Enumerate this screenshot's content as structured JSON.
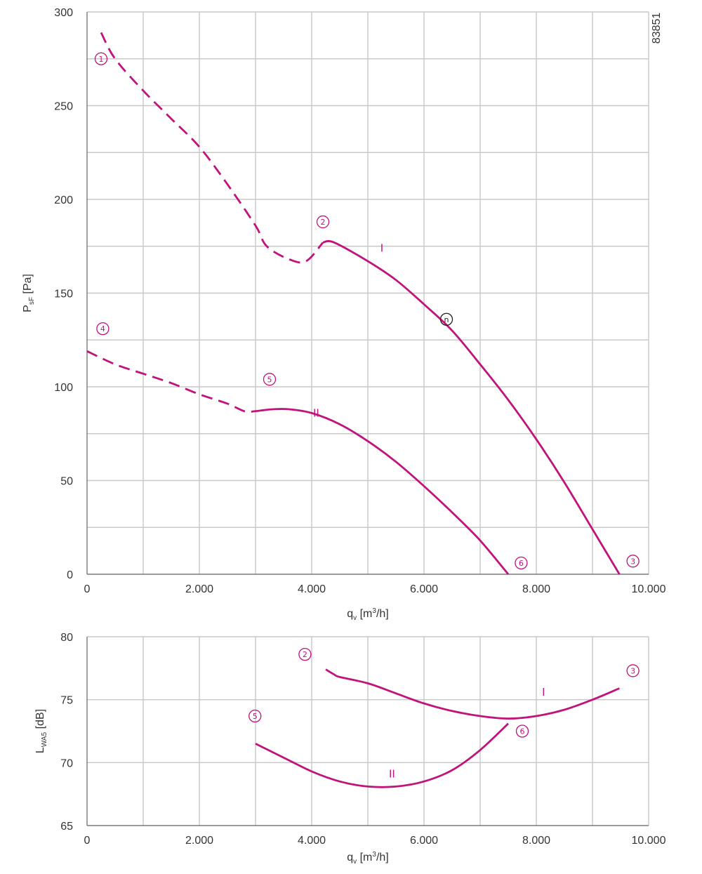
{
  "figure_id": "83851",
  "colors": {
    "curve": "#C0137B",
    "marker_n": "#222222",
    "grid": "#c8c8c8",
    "text": "#333333"
  },
  "chart_data": [
    {
      "type": "line",
      "ylabel_main": "P",
      "ylabel_sub": "sF",
      "ylabel_unit": " [Pa]",
      "xlabel_main": "q",
      "xlabel_sub": "v",
      "xlabel_unit": " [m",
      "xlabel_sup": "3",
      "xlabel_end": "/h]",
      "xlim": [
        0,
        10000
      ],
      "ylim": [
        0,
        300
      ],
      "x_ticks": [
        0,
        2000,
        4000,
        6000,
        8000,
        10000
      ],
      "x_tick_labels": [
        "0",
        "2.000",
        "4.000",
        "6.000",
        "8.000",
        "10.000"
      ],
      "y_ticks": [
        0,
        50,
        100,
        150,
        200,
        250,
        300
      ],
      "y_tick_labels": [
        "0",
        "50",
        "100",
        "150",
        "200",
        "250",
        "300"
      ],
      "x_minor_step": 1000,
      "y_minor_step": 25,
      "series": [
        {
          "name": "I",
          "style": "dashed",
          "x": [
            250,
            500,
            1000,
            1500,
            2000,
            2500,
            3000,
            3200,
            3600,
            3900,
            4200
          ],
          "y": [
            289,
            275,
            258,
            243,
            228,
            208,
            186,
            175,
            168,
            167,
            177
          ]
        },
        {
          "name": "I",
          "style": "solid",
          "x": [
            4200,
            4400,
            5000,
            5500,
            6000,
            6500,
            7000,
            7500,
            8000,
            8500,
            9000,
            9480
          ],
          "y": [
            177,
            177,
            167,
            157,
            144,
            130,
            112,
            93,
            72,
            49,
            24,
            0
          ]
        },
        {
          "name": "II",
          "style": "dashed",
          "x": [
            0,
            500,
            1000,
            1500,
            2000,
            2500,
            2800,
            3000
          ],
          "y": [
            119,
            112,
            107,
            102,
            96,
            91,
            87,
            87
          ]
        },
        {
          "name": "II",
          "style": "solid",
          "x": [
            3000,
            3300,
            3600,
            4000,
            4500,
            5000,
            5500,
            6000,
            6500,
            7000,
            7500
          ],
          "y": [
            87,
            88,
            88,
            86,
            80,
            71,
            60,
            47,
            33,
            18,
            0
          ]
        }
      ],
      "annotations": [
        {
          "label": "①",
          "x": 250,
          "y": 275,
          "color": "#C0137B"
        },
        {
          "label": "②",
          "x": 4200,
          "y": 188,
          "color": "#C0137B"
        },
        {
          "label": "③",
          "x": 9720,
          "y": 7,
          "color": "#C0137B"
        },
        {
          "label": "④",
          "x": 280,
          "y": 131,
          "color": "#C0137B"
        },
        {
          "label": "⑤",
          "x": 3250,
          "y": 104,
          "color": "#C0137B"
        },
        {
          "label": "⑥",
          "x": 7730,
          "y": 6,
          "color": "#C0137B"
        },
        {
          "label": "n",
          "x": 6400,
          "y": 136,
          "color": "#222222"
        }
      ],
      "curve_labels": [
        {
          "label": "I",
          "x": 5250,
          "y": 174
        },
        {
          "label": "II",
          "x": 4080,
          "y": 86
        }
      ]
    },
    {
      "type": "line",
      "ylabel_main": "L",
      "ylabel_sub": "WA5",
      "ylabel_unit": " [dB]",
      "xlabel_main": "q",
      "xlabel_sub": "v",
      "xlabel_unit": " [m",
      "xlabel_sup": "3",
      "xlabel_end": "/h]",
      "xlim": [
        0,
        10000
      ],
      "ylim": [
        65,
        80
      ],
      "x_ticks": [
        0,
        2000,
        4000,
        6000,
        8000,
        10000
      ],
      "x_tick_labels": [
        "0",
        "2.000",
        "4.000",
        "6.000",
        "8.000",
        "10.000"
      ],
      "y_ticks": [
        65,
        70,
        75,
        80
      ],
      "y_tick_labels": [
        "65",
        "70",
        "75",
        "80"
      ],
      "x_minor_step": 1000,
      "y_minor_step": 5,
      "series": [
        {
          "name": "I",
          "style": "solid",
          "x": [
            4250,
            4400,
            4500,
            5000,
            5500,
            6000,
            6500,
            7000,
            7500,
            8000,
            8500,
            9000,
            9480
          ],
          "y": [
            77.4,
            77.0,
            76.8,
            76.3,
            75.5,
            74.7,
            74.1,
            73.7,
            73.5,
            73.7,
            74.2,
            75.0,
            75.9
          ]
        },
        {
          "name": "II",
          "style": "solid",
          "x": [
            3000,
            3500,
            4000,
            4500,
            5000,
            5500,
            6000,
            6500,
            7000,
            7500
          ],
          "y": [
            71.5,
            70.4,
            69.3,
            68.5,
            68.1,
            68.1,
            68.5,
            69.4,
            71.0,
            73.1
          ]
        }
      ],
      "annotations": [
        {
          "label": "②",
          "x": 3880,
          "y": 78.6,
          "color": "#C0137B"
        },
        {
          "label": "③",
          "x": 9720,
          "y": 77.3,
          "color": "#C0137B"
        },
        {
          "label": "⑤",
          "x": 2990,
          "y": 73.7,
          "color": "#C0137B"
        },
        {
          "label": "⑥",
          "x": 7750,
          "y": 72.5,
          "color": "#C0137B"
        }
      ],
      "curve_labels": [
        {
          "label": "I",
          "x": 8130,
          "y": 75.6
        },
        {
          "label": "II",
          "x": 5430,
          "y": 69.1
        }
      ]
    }
  ]
}
